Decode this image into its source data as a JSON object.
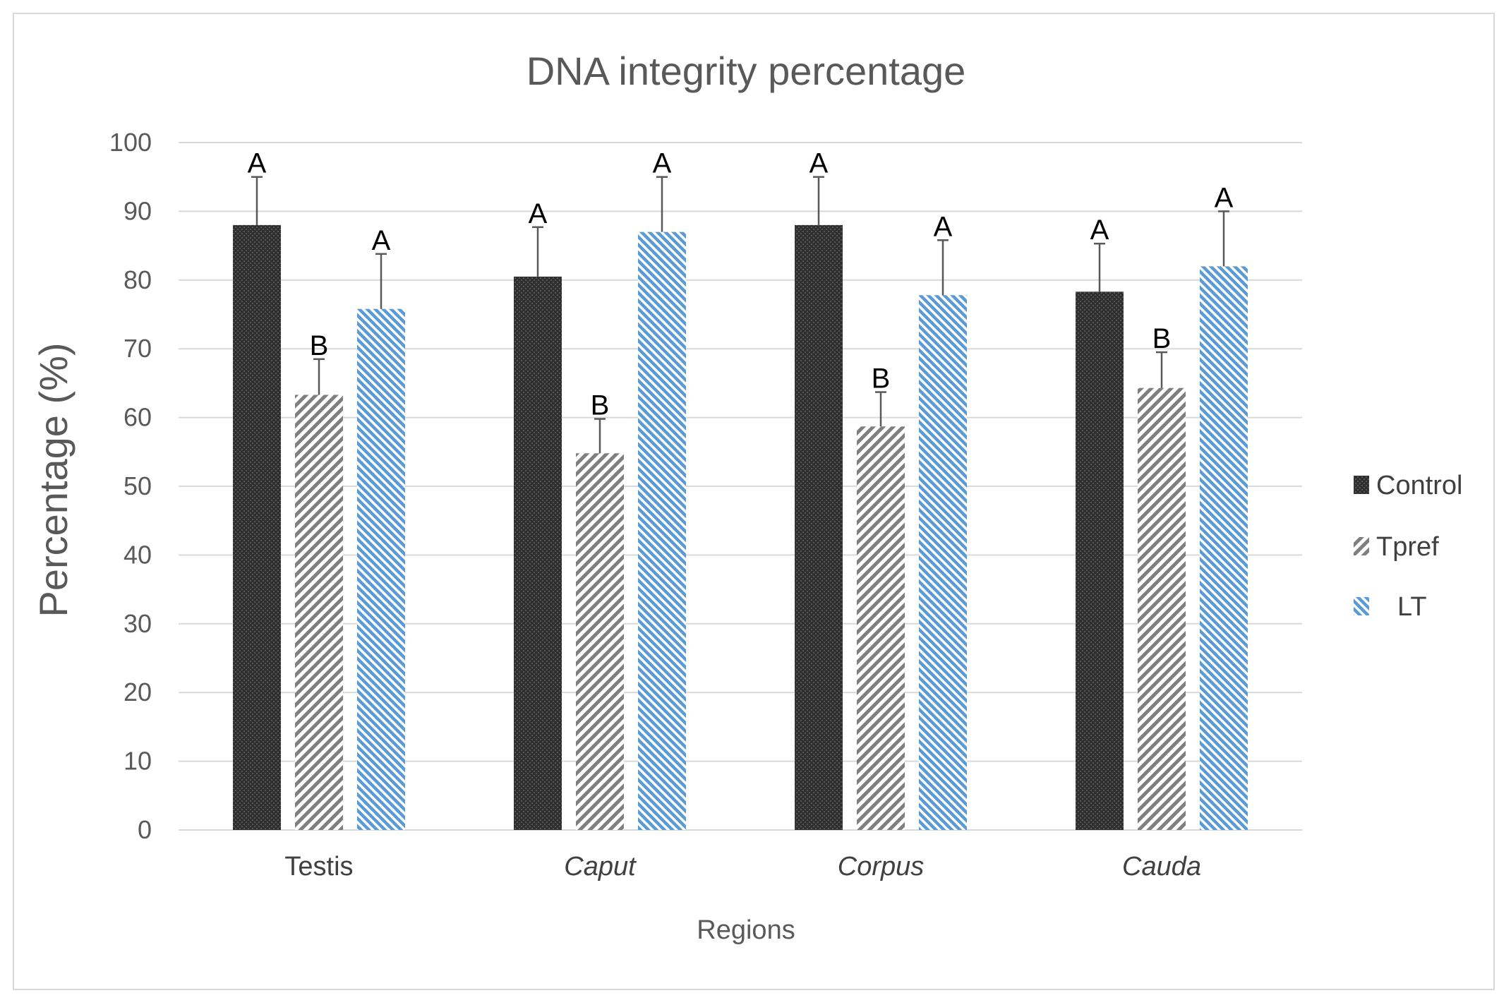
{
  "chart_data": {
    "type": "bar",
    "title": "DNA integrity percentage",
    "xlabel": "Regions",
    "ylabel": "Percentage (%)",
    "ylim": [
      0,
      100
    ],
    "yticks": [
      0,
      10,
      20,
      30,
      40,
      50,
      60,
      70,
      80,
      90,
      100
    ],
    "categories": [
      "Testis",
      "Caput",
      "Corpus",
      "Cauda"
    ],
    "category_italic": [
      false,
      true,
      true,
      true
    ],
    "series": [
      {
        "name": "Control",
        "color": "#3a3a3a",
        "values": [
          88,
          80.5,
          88,
          78.3
        ],
        "errors": [
          7,
          7.2,
          7,
          7
        ],
        "labels": [
          "A",
          "A",
          "A",
          "A"
        ]
      },
      {
        "name": "Tpref",
        "color": "#bfbfbf",
        "values": [
          63.3,
          54.8,
          58.7,
          64.3
        ],
        "errors": [
          5.2,
          5,
          5,
          5.2
        ],
        "labels": [
          "B",
          "B",
          "B",
          "B"
        ]
      },
      {
        "name": "LT",
        "color": "#5b9bd5",
        "values": [
          75.8,
          87,
          77.8,
          82
        ],
        "errors": [
          8,
          8,
          8,
          8
        ],
        "labels": [
          "A",
          "A",
          "A",
          "A"
        ]
      }
    ],
    "gridlines": true,
    "legend_position": "right"
  }
}
